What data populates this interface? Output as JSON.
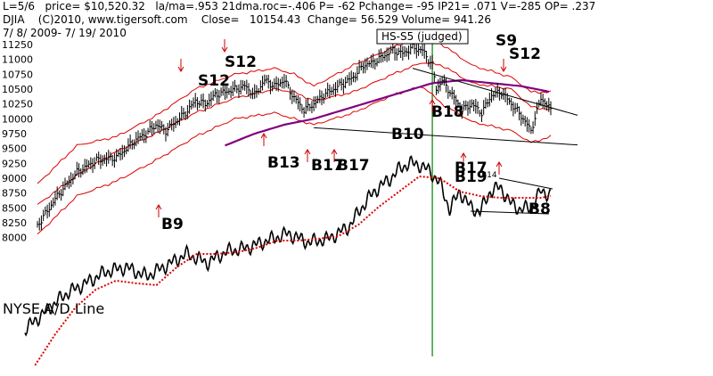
{
  "header": {
    "line1": "L=5/6   price= $10,520.32   la/ma=.953 21dma.roc=-.406 P= -62 Pchange= -95 IP21= .071 V=-285 OP= .237",
    "line2": "DJIA    (C)2010, www.tigersoft.com    Close=   10154.43  Change= 56.529 Volume= 941.26",
    "line3": "7/ 8/ 2009- 7/ 19/ 2010"
  },
  "colors": {
    "price_bars": "#000000",
    "band_red": "#dd0000",
    "ma_purple": "#800080",
    "signal_arrow": "#cc0000",
    "vertical_marker": "#008000",
    "trendline": "#000000"
  },
  "chart_data": {
    "type": "line",
    "title": "DJIA",
    "date_range": "7/8/2009 - 7/19/2010",
    "y_ticks": [
      "11250",
      "11000",
      "10750",
      "10500",
      "10250",
      "10000",
      "9750",
      "9500",
      "9250",
      "9000",
      "8750",
      "8500",
      "8250",
      "8000"
    ],
    "y_tick_values": [
      11250,
      11000,
      10750,
      10500,
      10250,
      10000,
      9750,
      9500,
      9250,
      9000,
      8750,
      8500,
      8250,
      8000
    ],
    "ylim": [
      7950,
      11400
    ],
    "n_days": 260,
    "price_series": {
      "name": "DJIA",
      "anchors": [
        [
          0,
          8200
        ],
        [
          10,
          8700
        ],
        [
          20,
          9100
        ],
        [
          30,
          9300
        ],
        [
          40,
          9350
        ],
        [
          45,
          9500
        ],
        [
          50,
          9650
        ],
        [
          55,
          9750
        ],
        [
          60,
          9900
        ],
        [
          65,
          9800
        ],
        [
          70,
          9950
        ],
        [
          75,
          10100
        ],
        [
          80,
          10300
        ],
        [
          85,
          10250
        ],
        [
          90,
          10400
        ],
        [
          95,
          10450
        ],
        [
          100,
          10500
        ],
        [
          105,
          10550
        ],
        [
          110,
          10400
        ],
        [
          115,
          10650
        ],
        [
          120,
          10550
        ],
        [
          125,
          10650
        ],
        [
          130,
          10350
        ],
        [
          135,
          10150
        ],
        [
          140,
          10250
        ],
        [
          145,
          10400
        ],
        [
          150,
          10500
        ],
        [
          155,
          10600
        ],
        [
          160,
          10700
        ],
        [
          165,
          10900
        ],
        [
          170,
          10950
        ],
        [
          175,
          11050
        ],
        [
          180,
          11150
        ],
        [
          185,
          11100
        ],
        [
          190,
          11200
        ],
        [
          195,
          11150
        ],
        [
          200,
          10900
        ],
        [
          202,
          10500
        ],
        [
          205,
          10650
        ],
        [
          210,
          10400
        ],
        [
          215,
          10150
        ],
        [
          220,
          10250
        ],
        [
          225,
          10100
        ],
        [
          230,
          10400
        ],
        [
          235,
          10450
        ],
        [
          240,
          10250
        ],
        [
          245,
          10050
        ],
        [
          250,
          9800
        ],
        [
          255,
          10350
        ],
        [
          260,
          10150
        ]
      ]
    },
    "band_upper": {
      "name": "upper band",
      "anchors": [
        [
          0,
          8900
        ],
        [
          20,
          9550
        ],
        [
          40,
          9700
        ],
        [
          60,
          10050
        ],
        [
          80,
          10500
        ],
        [
          100,
          10750
        ],
        [
          120,
          10850
        ],
        [
          130,
          10750
        ],
        [
          140,
          10550
        ],
        [
          160,
          10900
        ],
        [
          180,
          11200
        ],
        [
          195,
          11400
        ],
        [
          205,
          11250
        ],
        [
          220,
          10900
        ],
        [
          240,
          10700
        ],
        [
          250,
          10450
        ],
        [
          260,
          10450
        ]
      ]
    },
    "band_lower": {
      "name": "lower band",
      "anchors": [
        [
          0,
          8050
        ],
        [
          20,
          8700
        ],
        [
          40,
          8950
        ],
        [
          60,
          9300
        ],
        [
          80,
          9700
        ],
        [
          100,
          10000
        ],
        [
          120,
          10100
        ],
        [
          130,
          10000
        ],
        [
          140,
          9900
        ],
        [
          160,
          10100
        ],
        [
          180,
          10400
        ],
        [
          195,
          10550
        ],
        [
          205,
          10250
        ],
        [
          220,
          9950
        ],
        [
          240,
          9800
        ],
        [
          250,
          9600
        ],
        [
          260,
          9700
        ]
      ]
    },
    "ma_21": {
      "name": "21-day MA",
      "anchors": [
        [
          0,
          8550
        ],
        [
          20,
          9050
        ],
        [
          40,
          9450
        ],
        [
          60,
          9750
        ],
        [
          80,
          10100
        ],
        [
          100,
          10350
        ],
        [
          120,
          10500
        ],
        [
          130,
          10450
        ],
        [
          140,
          10300
        ],
        [
          160,
          10450
        ],
        [
          180,
          10750
        ],
        [
          195,
          10950
        ],
        [
          205,
          10900
        ],
        [
          220,
          10600
        ],
        [
          240,
          10500
        ],
        [
          250,
          10200
        ],
        [
          260,
          10150
        ]
      ]
    },
    "ma_purple": {
      "name": "200-day MA",
      "anchors": [
        [
          95,
          9550
        ],
        [
          110,
          9750
        ],
        [
          125,
          9900
        ],
        [
          140,
          10000
        ],
        [
          155,
          10150
        ],
        [
          170,
          10300
        ],
        [
          185,
          10450
        ],
        [
          200,
          10600
        ],
        [
          215,
          10650
        ],
        [
          230,
          10600
        ],
        [
          245,
          10550
        ],
        [
          260,
          10450
        ]
      ]
    },
    "trendlines": [
      {
        "name": "neckline",
        "from": [
          190,
          10850
        ],
        "to": [
          260,
          10150
        ]
      },
      {
        "name": "support",
        "from": [
          140,
          9850
        ],
        "to": [
          260,
          9650
        ]
      }
    ],
    "vertical_marker_day": 200,
    "vertical_marker_label": "HS-S5 (judged)",
    "ad_line": {
      "name": "NYSE A/D Line",
      "label": "NYSE A/D Line",
      "anchors": [
        [
          0,
          370
        ],
        [
          10,
          350
        ],
        [
          20,
          330
        ],
        [
          30,
          318
        ],
        [
          40,
          305
        ],
        [
          50,
          300
        ],
        [
          60,
          310
        ],
        [
          70,
          298
        ],
        [
          80,
          285
        ],
        [
          90,
          295
        ],
        [
          100,
          282
        ],
        [
          110,
          278
        ],
        [
          120,
          270
        ],
        [
          130,
          262
        ],
        [
          140,
          272
        ],
        [
          150,
          268
        ],
        [
          160,
          255
        ],
        [
          165,
          238
        ],
        [
          170,
          222
        ],
        [
          175,
          210
        ],
        [
          180,
          202
        ],
        [
          185,
          190
        ],
        [
          190,
          183
        ],
        [
          195,
          185
        ],
        [
          200,
          192
        ],
        [
          205,
          205
        ],
        [
          210,
          235
        ],
        [
          215,
          215
        ],
        [
          220,
          232
        ],
        [
          225,
          238
        ],
        [
          230,
          215
        ],
        [
          235,
          210
        ],
        [
          240,
          228
        ],
        [
          245,
          235
        ],
        [
          250,
          233
        ],
        [
          255,
          215
        ],
        [
          260,
          218
        ]
      ]
    },
    "ad_ma": {
      "name": "A/D moving average",
      "anchors": [
        [
          5,
          410
        ],
        [
          15,
          375
        ],
        [
          25,
          345
        ],
        [
          35,
          325
        ],
        [
          45,
          315
        ],
        [
          55,
          318
        ],
        [
          65,
          320
        ],
        [
          75,
          300
        ],
        [
          85,
          285
        ],
        [
          95,
          285
        ],
        [
          105,
          283
        ],
        [
          115,
          278
        ],
        [
          125,
          270
        ],
        [
          135,
          270
        ],
        [
          145,
          268
        ],
        [
          155,
          265
        ],
        [
          165,
          252
        ],
        [
          175,
          232
        ],
        [
          185,
          215
        ],
        [
          195,
          198
        ],
        [
          205,
          200
        ],
        [
          215,
          215
        ],
        [
          225,
          220
        ],
        [
          235,
          222
        ],
        [
          245,
          222
        ],
        [
          255,
          222
        ],
        [
          260,
          220
        ]
      ]
    },
    "signals": [
      {
        "label": "S12",
        "day": 75,
        "kind": "big"
      },
      {
        "label": "S12",
        "day": 56,
        "kind": "big"
      },
      {
        "label": "B13",
        "day": 86,
        "kind": "big"
      },
      {
        "label": "B17",
        "day": 107,
        "kind": "big"
      },
      {
        "label": "B17",
        "day": 118,
        "kind": "big"
      },
      {
        "label": "B10",
        "day": 148,
        "kind": "big"
      },
      {
        "label": "B18",
        "day": 168,
        "kind": "big"
      },
      {
        "label": "S9",
        "day": 190,
        "kind": "big"
      },
      {
        "label": "S12",
        "day": 196,
        "kind": "big"
      },
      {
        "label": "B9",
        "day": 55,
        "kind": "big"
      },
      {
        "label": "B17",
        "day": 182,
        "kind": "big"
      },
      {
        "label": "B19",
        "day": 184,
        "kind": "big"
      },
      {
        "label": "B8",
        "day": 218,
        "kind": "big"
      },
      {
        "label": "B14",
        "day": 190,
        "kind": "small"
      }
    ]
  }
}
